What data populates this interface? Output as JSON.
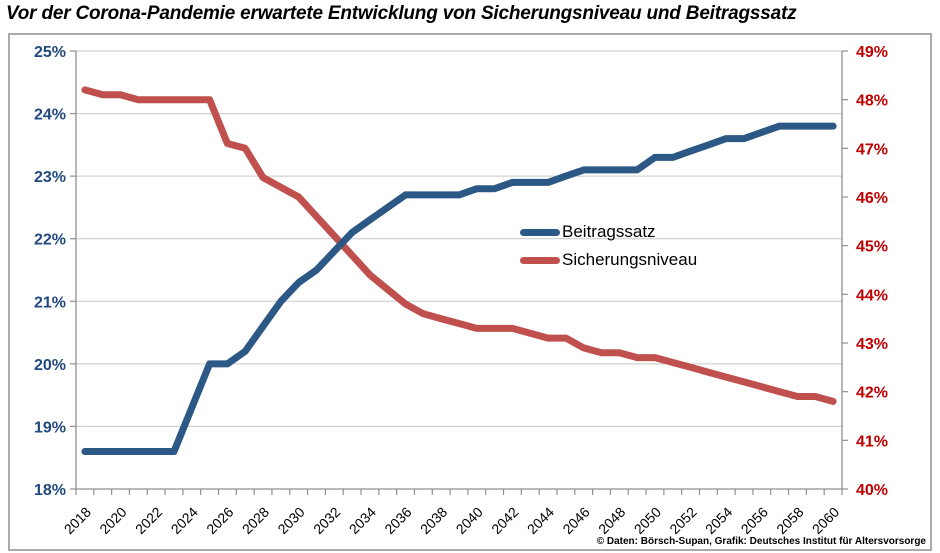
{
  "title": "Vor der Corona-Pandemie erwartete Entwicklung von Sicherungsniveau und Beitragssatz",
  "credit": "© Daten: Börsch-Supan, Grafik: Deutsches Institut für Altersvorsorge",
  "colors": {
    "beitragssatz_line": "#2c5886",
    "sicherungsniveau_line": "#c0504d",
    "left_axis_text": "#21497e",
    "right_axis_text": "#c00000",
    "x_axis_text": "#000000",
    "gridline": "#c9c9c9",
    "axis_line": "#8f8f8f",
    "chart_border": "#ababab"
  },
  "chart_data": {
    "type": "line",
    "title": "Vor der Corona-Pandemie erwartete Entwicklung von Sicherungsniveau und Beitragssatz",
    "x": [
      2018,
      2019,
      2020,
      2021,
      2022,
      2023,
      2024,
      2025,
      2026,
      2027,
      2028,
      2029,
      2030,
      2031,
      2032,
      2033,
      2034,
      2035,
      2036,
      2037,
      2038,
      2039,
      2040,
      2041,
      2042,
      2043,
      2044,
      2045,
      2046,
      2047,
      2048,
      2049,
      2050,
      2051,
      2052,
      2053,
      2054,
      2055,
      2056,
      2057,
      2058,
      2059,
      2060
    ],
    "series": [
      {
        "name": "Beitragssatz",
        "axis": "left",
        "color": "#2c5886",
        "values": [
          18.6,
          18.6,
          18.6,
          18.6,
          18.6,
          18.6,
          19.3,
          20.0,
          20.0,
          20.2,
          20.6,
          21.0,
          21.3,
          21.5,
          21.8,
          22.1,
          22.3,
          22.5,
          22.7,
          22.7,
          22.7,
          22.7,
          22.8,
          22.8,
          22.9,
          22.9,
          22.9,
          23.0,
          23.1,
          23.1,
          23.1,
          23.1,
          23.3,
          23.3,
          23.4,
          23.5,
          23.6,
          23.6,
          23.7,
          23.8,
          23.8,
          23.8,
          23.8
        ]
      },
      {
        "name": "Sicherungsniveau",
        "axis": "right",
        "color": "#c0504d",
        "values": [
          48.2,
          48.1,
          48.1,
          48.0,
          48.0,
          48.0,
          48.0,
          48.0,
          47.1,
          47.0,
          46.4,
          46.2,
          46.0,
          45.6,
          45.2,
          44.8,
          44.4,
          44.1,
          43.8,
          43.6,
          43.5,
          43.4,
          43.3,
          43.3,
          43.3,
          43.2,
          43.1,
          43.1,
          42.9,
          42.8,
          42.8,
          42.7,
          42.7,
          42.6,
          42.5,
          42.4,
          42.3,
          42.2,
          42.1,
          42.0,
          41.9,
          41.9,
          41.8
        ]
      }
    ],
    "left_axis": {
      "min": 18,
      "max": 25,
      "step": 1,
      "unit": "%",
      "tick_labels": [
        "25%",
        "24%",
        "23%",
        "22%",
        "21%",
        "20%",
        "19%",
        "18%"
      ]
    },
    "right_axis": {
      "min": 40,
      "max": 49,
      "step": 1,
      "unit": "%",
      "tick_labels": [
        "49%",
        "48%",
        "47%",
        "46%",
        "45%",
        "44%",
        "43%",
        "42%",
        "41%",
        "40%"
      ]
    },
    "x_tick_labels": [
      "2018",
      "2020",
      "2022",
      "2024",
      "2026",
      "2028",
      "2030",
      "2032",
      "2034",
      "2036",
      "2038",
      "2040",
      "2042",
      "2044",
      "2046",
      "2048",
      "2050",
      "2052",
      "2054",
      "2056",
      "2058",
      "2060"
    ],
    "grid": true,
    "legend_position": "middle-right"
  }
}
